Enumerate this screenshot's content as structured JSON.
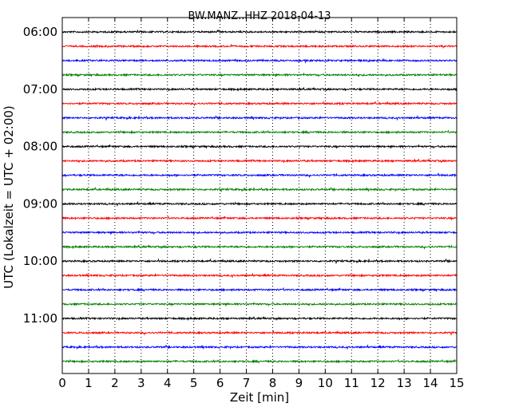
{
  "chart_data": {
    "type": "line",
    "title": "BW.MANZ..HHZ 2018-04-13",
    "xlabel": "Zeit  [min]",
    "ylabel": "UTC (Lokalzeit = UTC + 02:00)",
    "xlim": [
      0,
      15
    ],
    "x_ticks": [
      "0",
      "1",
      "2",
      "3",
      "4",
      "5",
      "6",
      "7",
      "8",
      "9",
      "10",
      "11",
      "12",
      "13",
      "14",
      "15"
    ],
    "y_ticks": [
      "06:00",
      "07:00",
      "08:00",
      "09:00",
      "10:00",
      "11:00"
    ],
    "grid": "vertical-dotted",
    "trace_interval_minutes": 15,
    "trace_start_times": [
      "06:00",
      "06:15",
      "06:30",
      "06:45",
      "07:00",
      "07:15",
      "07:30",
      "07:45",
      "08:00",
      "08:15",
      "08:30",
      "08:45",
      "09:00",
      "09:15",
      "09:30",
      "09:45",
      "10:00",
      "10:15",
      "10:30",
      "10:45",
      "11:00",
      "11:15",
      "11:30",
      "11:45"
    ],
    "trace_color_cycle": [
      "#000000",
      "#ff0000",
      "#0000ff",
      "#008000"
    ]
  }
}
